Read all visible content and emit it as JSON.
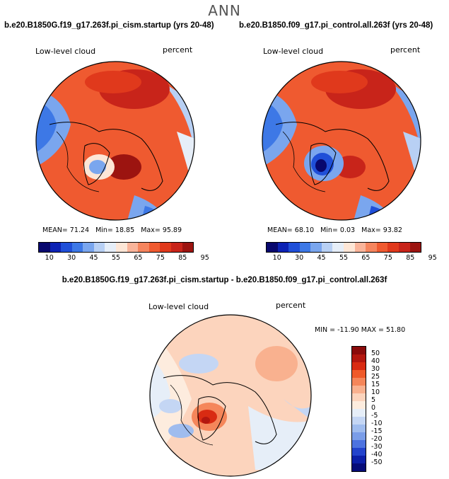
{
  "figure": {
    "season": "ANN",
    "panel1": {
      "title": "b.e20.B1850G.f19_g17.263f.pi_cism.startup (yrs 20-48)",
      "variable": "Low-level cloud",
      "units": "percent",
      "mean_label": "MEAN=",
      "mean": "71.24",
      "min_label": "Min=",
      "min": "18.85",
      "max_label": "Max=",
      "max": "95.89"
    },
    "panel2": {
      "title": "b.e20.B1850.f09_g17.pi_control.all.263f (yrs 20-48)",
      "variable": "Low-level cloud",
      "units": "percent",
      "mean_label": "MEAN=",
      "mean": "68.10",
      "min_label": "Min=",
      "min": "0.03",
      "max_label": "Max=",
      "max": "93.82"
    },
    "diff": {
      "title": "b.e20.B1850G.f19_g17.263f.pi_cism.startup - b.e20.B1850.f09_g17.pi_control.all.263f",
      "variable": "Low-level cloud",
      "units": "percent",
      "minmax": "MIN = -11.90 MAX =  51.80"
    },
    "colorbar_ticks": [
      "10",
      "30",
      "45",
      "55",
      "65",
      "75",
      "85",
      "95"
    ],
    "diff_colorbar_ticks": [
      "50",
      "40",
      "30",
      "25",
      "15",
      "10",
      "5",
      "0",
      "-5",
      "-10",
      "-15",
      "-20",
      "-30",
      "-40",
      "-50"
    ],
    "colors": {
      "abs_scale": [
        "#08086e",
        "#0c22b4",
        "#1f4fd8",
        "#3d78e6",
        "#7aa6ee",
        "#b8d0f4",
        "#e6eef8",
        "#fde6d6",
        "#f9b49a",
        "#f5855e",
        "#ef5a30",
        "#e0391c",
        "#c8241a",
        "#9c1410"
      ],
      "diff_scale": [
        "#8a0b0b",
        "#b3170f",
        "#d92b12",
        "#ef5a2a",
        "#f5865a",
        "#f9b18f",
        "#fcd4bd",
        "#fdecde",
        "#e6eef8",
        "#c4d6f4",
        "#9fbcee",
        "#7a9de8",
        "#4d73e0",
        "#2343cc",
        "#0c1fa8",
        "#060c78"
      ]
    }
  }
}
